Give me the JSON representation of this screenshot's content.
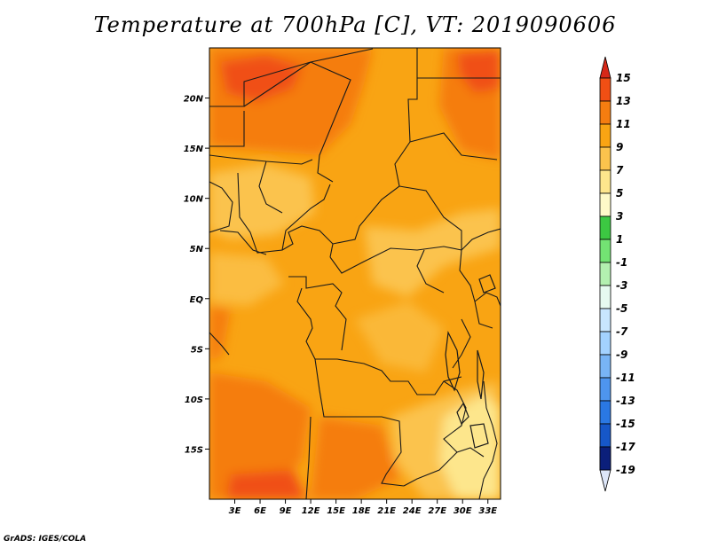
{
  "title": "Temperature at 700hPa [C], VT: 2019090606",
  "credit": "GrADS: IGES/COLA",
  "map": {
    "lon_range": [
      0,
      34.5
    ],
    "lat_range": [
      -20,
      25
    ],
    "lat_ticks": [
      {
        "value": 20,
        "label": "20N"
      },
      {
        "value": 15,
        "label": "15N"
      },
      {
        "value": 10,
        "label": "10N"
      },
      {
        "value": 5,
        "label": "5N"
      },
      {
        "value": 0,
        "label": "EQ"
      },
      {
        "value": -5,
        "label": "5S"
      },
      {
        "value": -10,
        "label": "10S"
      },
      {
        "value": -15,
        "label": "15S"
      }
    ],
    "lon_ticks": [
      {
        "value": 3,
        "label": "3E"
      },
      {
        "value": 6,
        "label": "6E"
      },
      {
        "value": 9,
        "label": "9E"
      },
      {
        "value": 12,
        "label": "12E"
      },
      {
        "value": 15,
        "label": "15E"
      },
      {
        "value": 18,
        "label": "18E"
      },
      {
        "value": 21,
        "label": "21E"
      },
      {
        "value": 24,
        "label": "24E"
      },
      {
        "value": 27,
        "label": "27E"
      },
      {
        "value": 30,
        "label": "30E"
      },
      {
        "value": 33,
        "label": "33E"
      }
    ]
  },
  "colorbar": {
    "levels": [
      {
        "label": "15",
        "color": "#e8321e"
      },
      {
        "label": "13",
        "color": "#f04f14"
      },
      {
        "label": "11",
        "color": "#f57d10"
      },
      {
        "label": "9",
        "color": "#f9a413"
      },
      {
        "label": "7",
        "color": "#fbc34d"
      },
      {
        "label": "5",
        "color": "#fde68c"
      },
      {
        "label": "3",
        "color": "#fefac8"
      },
      {
        "label": "1",
        "color": "#3cc842"
      },
      {
        "label": "-1",
        "color": "#73e373"
      },
      {
        "label": "-3",
        "color": "#b3f0b0"
      },
      {
        "label": "-5",
        "color": "#e6faf0"
      },
      {
        "label": "-7",
        "color": "#c8e6ff"
      },
      {
        "label": "-9",
        "color": "#a3d2ff"
      },
      {
        "label": "-11",
        "color": "#78b4f5"
      },
      {
        "label": "-13",
        "color": "#4e95ee"
      },
      {
        "label": "-15",
        "color": "#2a78e3"
      },
      {
        "label": "-17",
        "color": "#1657c8"
      },
      {
        "label": "-19",
        "color": "#0a3aa4"
      }
    ],
    "top_arrow_color": "#d62818",
    "bottom_arrow_color": "#0b1f7a",
    "bottom_tail_color": "#dde6f8"
  }
}
